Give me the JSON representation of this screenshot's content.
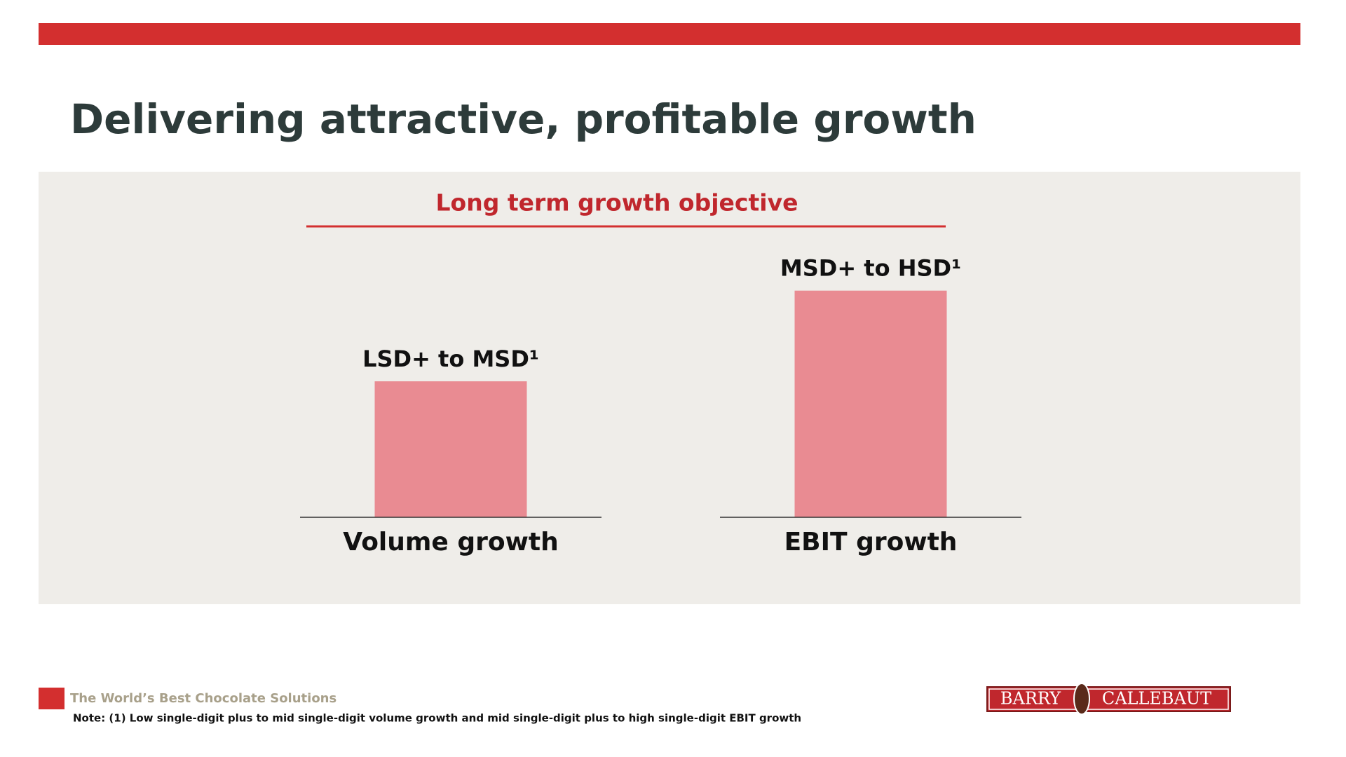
{
  "header": {
    "title": "Delivering attractive, profitable growth"
  },
  "chart_data": {
    "type": "bar",
    "title": "Long term growth objective",
    "categories": [
      "Volume growth",
      "EBIT growth"
    ],
    "values": [
      3,
      5
    ],
    "value_labels": [
      "LSD+ to MSD¹",
      "MSD+ to HSD¹"
    ],
    "color": "#e98b92",
    "ylim": [
      0,
      6
    ]
  },
  "footer": {
    "tagline": "The World’s Best Chocolate Solutions",
    "note": "Note: (1) Low single-digit plus to mid single-digit volume growth and mid single-digit plus to high single-digit EBIT growth",
    "logo": [
      "BARRY",
      "CALLEBAUT"
    ]
  }
}
